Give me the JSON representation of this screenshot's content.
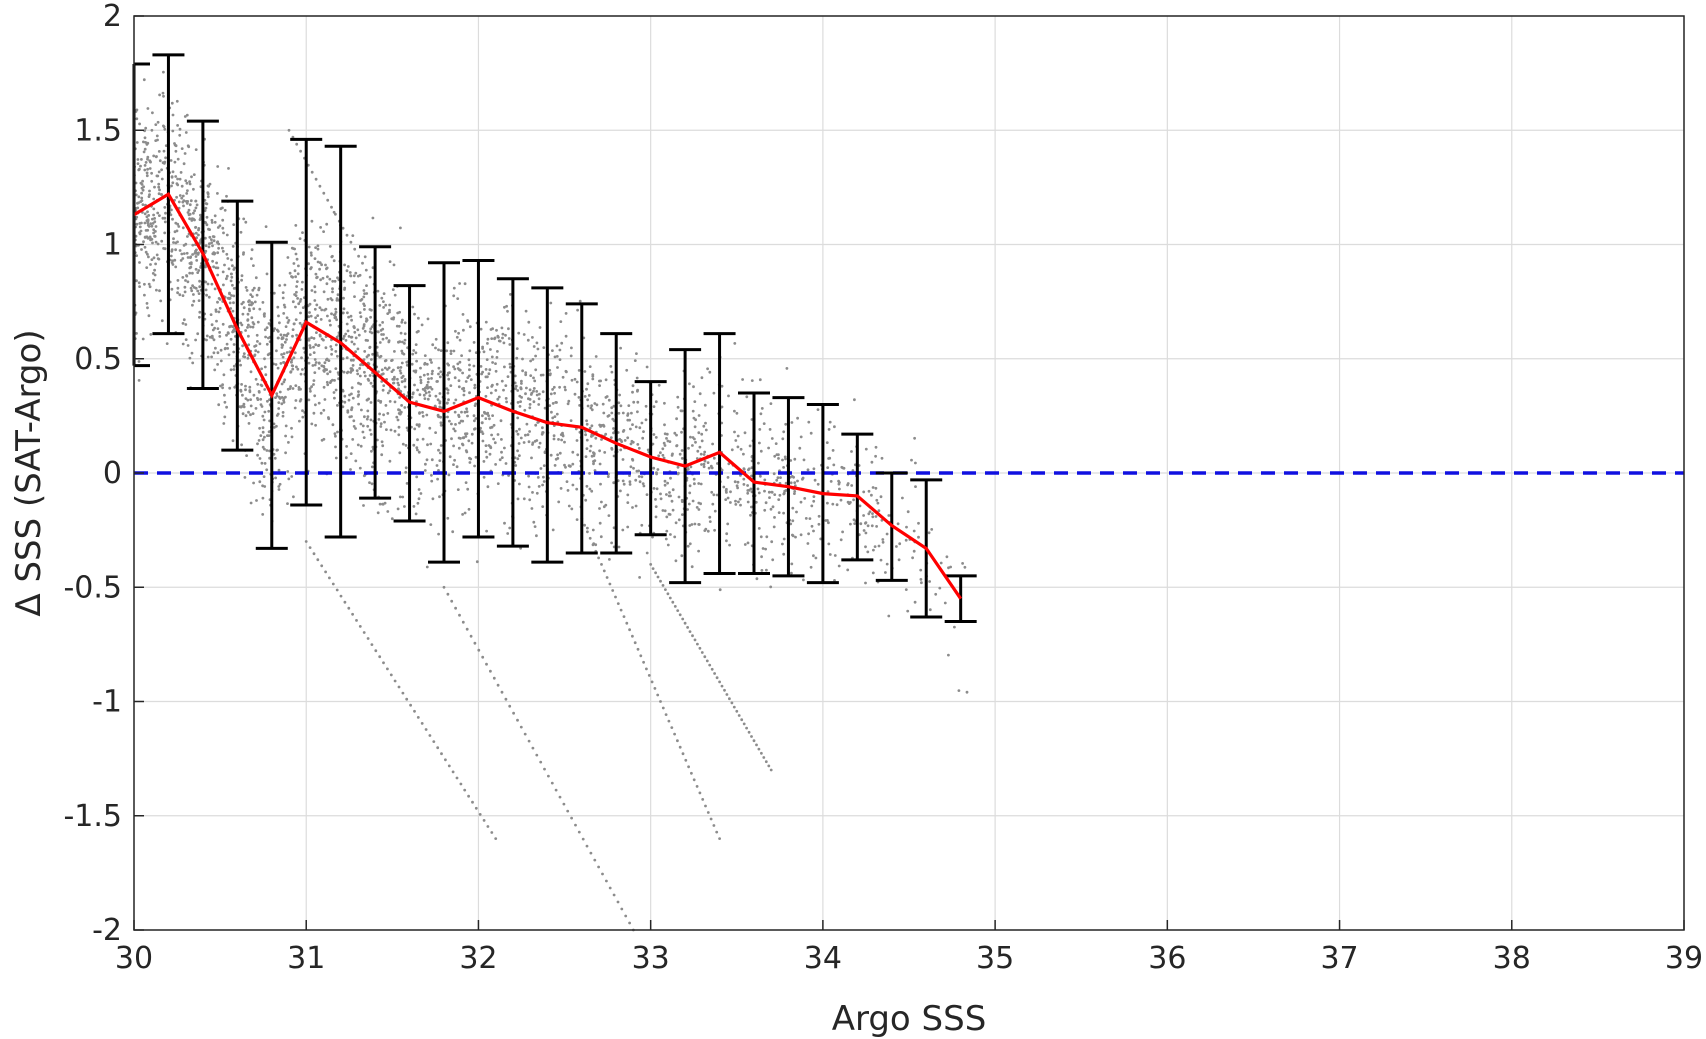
{
  "chart_data": {
    "type": "scatter",
    "title": "",
    "xlabel": "Argo SSS",
    "ylabel": "Δ SSS (SAT-Argo)",
    "xlim": [
      30,
      39
    ],
    "ylim": [
      -2,
      2
    ],
    "x_ticks": [
      "30",
      "31",
      "32",
      "33",
      "34",
      "35",
      "36",
      "37",
      "38",
      "39"
    ],
    "y_ticks": [
      "2",
      "1.5",
      "1",
      "0.5",
      "0",
      "-0.5",
      "-1",
      "-1.5",
      "-2"
    ],
    "grid": true,
    "legend": "none",
    "reference_line": {
      "y": 0,
      "style": "dashed",
      "color": "#1010e0"
    },
    "mean_line": {
      "color": "#ff0000",
      "x": [
        30.0,
        30.2,
        30.4,
        30.6,
        30.8,
        31.0,
        31.2,
        31.4,
        31.6,
        31.8,
        32.0,
        32.2,
        32.4,
        32.6,
        32.8,
        33.0,
        33.2,
        33.4,
        33.6,
        33.8,
        34.0,
        34.2,
        34.4,
        34.6,
        34.8
      ],
      "y": [
        1.13,
        1.22,
        0.96,
        0.63,
        0.34,
        0.66,
        0.57,
        0.44,
        0.31,
        0.27,
        0.33,
        0.27,
        0.22,
        0.2,
        0.13,
        0.07,
        0.03,
        0.09,
        -0.04,
        -0.06,
        -0.09,
        -0.1,
        -0.23,
        -0.33,
        -0.55
      ]
    },
    "error_bars": {
      "color": "#000000",
      "x": [
        30.0,
        30.2,
        30.4,
        30.6,
        30.8,
        31.0,
        31.2,
        31.4,
        31.6,
        31.8,
        32.0,
        32.2,
        32.4,
        32.6,
        32.8,
        33.0,
        33.2,
        33.4,
        33.6,
        33.8,
        34.0,
        34.2,
        34.4,
        34.6,
        34.8
      ],
      "upper": [
        1.79,
        1.83,
        1.54,
        1.19,
        1.01,
        1.46,
        1.43,
        0.99,
        0.82,
        0.92,
        0.93,
        0.85,
        0.81,
        0.74,
        0.61,
        0.4,
        0.54,
        0.61,
        0.35,
        0.33,
        0.3,
        0.17,
        0.0,
        -0.03,
        -0.45
      ],
      "lower": [
        0.47,
        0.61,
        0.37,
        0.1,
        -0.33,
        -0.14,
        -0.28,
        -0.11,
        -0.21,
        -0.39,
        -0.28,
        -0.32,
        -0.39,
        -0.35,
        -0.35,
        -0.27,
        -0.48,
        -0.44,
        -0.44,
        -0.45,
        -0.48,
        -0.38,
        -0.47,
        -0.63,
        -0.65
      ]
    },
    "scatter": {
      "color": "#8c8c8c",
      "description_count": 3000
    }
  }
}
